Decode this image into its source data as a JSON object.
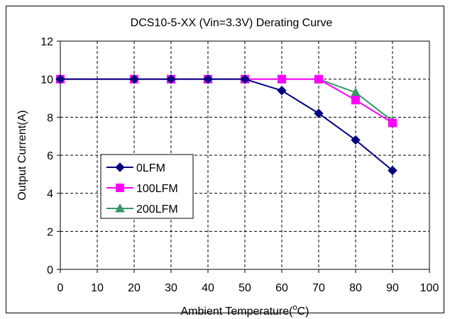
{
  "chart_data": {
    "type": "line",
    "title": "DCS10-5-XX  (Vin=3.3V) Derating Curve",
    "xlabel": "Ambient Temperature(",
    "xlabel_sup": "o",
    "xlabel_unit": "C)",
    "ylabel": "Output Current(A)",
    "xlim": [
      0,
      100
    ],
    "ylim": [
      0,
      12
    ],
    "xticks": [
      0,
      10,
      20,
      30,
      40,
      50,
      60,
      70,
      80,
      90,
      100
    ],
    "yticks": [
      0,
      2,
      4,
      6,
      8,
      10,
      12
    ],
    "grid": true,
    "legend_position": "left-middle",
    "series": [
      {
        "name": "0LFM",
        "color": "#000080",
        "marker": "diamond",
        "x": [
          0,
          20,
          30,
          40,
          50,
          60,
          70,
          80,
          90
        ],
        "y": [
          10,
          10,
          10,
          10,
          10,
          9.4,
          8.2,
          6.8,
          5.2
        ]
      },
      {
        "name": "100LFM",
        "color": "#FF00FF",
        "marker": "square",
        "x": [
          0,
          20,
          30,
          40,
          50,
          60,
          70,
          80,
          90
        ],
        "y": [
          10,
          10,
          10,
          10,
          10,
          10,
          10,
          8.9,
          7.7
        ]
      },
      {
        "name": "200LFM",
        "color": "#339966",
        "marker": "triangle",
        "x": [
          0,
          20,
          30,
          40,
          50,
          60,
          70,
          80,
          90
        ],
        "y": [
          10,
          10,
          10,
          10,
          10,
          10,
          10,
          9.3,
          7.8
        ]
      }
    ]
  }
}
